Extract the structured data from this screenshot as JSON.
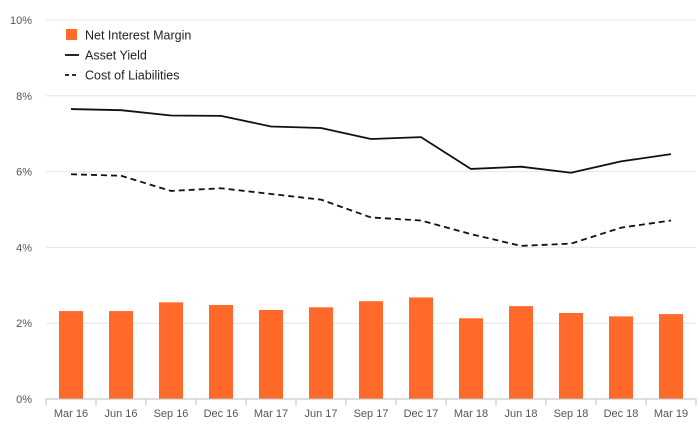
{
  "chart_data": {
    "type": "bar+line",
    "categories": [
      "Mar 16",
      "Jun 16",
      "Sep 16",
      "Dec 16",
      "Mar 17",
      "Jun 17",
      "Sep 17",
      "Dec 17",
      "Mar 18",
      "Jun 18",
      "Sep 18",
      "Dec 18",
      "Mar 19"
    ],
    "series": [
      {
        "name": "Net Interest Margin",
        "kind": "bar",
        "color": "#ff6a2a",
        "values": [
          2.32,
          2.32,
          2.55,
          2.48,
          2.35,
          2.42,
          2.58,
          2.68,
          2.13,
          2.45,
          2.27,
          2.18,
          2.24
        ]
      },
      {
        "name": "Asset Yield",
        "kind": "line",
        "style": "solid",
        "color": "#111111",
        "values": [
          7.65,
          7.62,
          7.48,
          7.47,
          7.19,
          7.15,
          6.86,
          6.91,
          6.07,
          6.13,
          5.97,
          6.27,
          6.46
        ]
      },
      {
        "name": "Cost of Liabilities",
        "kind": "line",
        "style": "dashed",
        "color": "#111111",
        "values": [
          5.93,
          5.89,
          5.49,
          5.56,
          5.41,
          5.26,
          4.79,
          4.71,
          4.35,
          4.04,
          4.1,
          4.52,
          4.71
        ]
      }
    ],
    "yticks": [
      "0%",
      "2%",
      "4%",
      "6%",
      "8%",
      "10%"
    ],
    "ylim": [
      0,
      10
    ],
    "grid": true,
    "legend": "top-left"
  }
}
